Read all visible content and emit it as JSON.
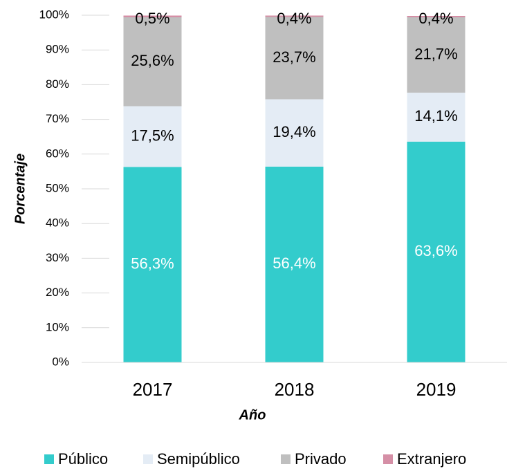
{
  "chart_data": {
    "type": "stacked_bar",
    "x_label": "Año",
    "y_label": "Porcentaje",
    "categories": [
      "2017",
      "2018",
      "2019"
    ],
    "series": [
      {
        "name": "Público",
        "color": "#33cccc",
        "values": [
          56.3,
          56.4,
          63.6
        ],
        "value_labels": [
          "56,3%",
          "56,4%",
          "63,6%"
        ]
      },
      {
        "name": "Semipúblico",
        "color": "#e4ecf5",
        "values": [
          17.5,
          19.4,
          14.1
        ],
        "value_labels": [
          "17,5%",
          "19,4%",
          "14,1%"
        ]
      },
      {
        "name": "Privado",
        "color": "#bfbfbf",
        "values": [
          25.6,
          23.7,
          21.7
        ],
        "value_labels": [
          "25,6%",
          "23,7%",
          "21,7%"
        ]
      },
      {
        "name": "Extranjero",
        "color": "#d58fa6",
        "values": [
          0.5,
          0.4,
          0.4
        ],
        "value_labels": [
          "0,5%",
          "0,4%",
          "0,4%"
        ]
      }
    ],
    "ylim": [
      0,
      100
    ],
    "yticks": [
      {
        "value": 0,
        "label": "0%"
      },
      {
        "value": 10,
        "label": "10%"
      },
      {
        "value": 20,
        "label": "20%"
      },
      {
        "value": 30,
        "label": "30%"
      },
      {
        "value": 40,
        "label": "40%"
      },
      {
        "value": 50,
        "label": "50%"
      },
      {
        "value": 60,
        "label": "60%"
      },
      {
        "value": 70,
        "label": "70%"
      },
      {
        "value": 80,
        "label": "80%"
      },
      {
        "value": 90,
        "label": "90%"
      },
      {
        "value": 100,
        "label": "100%"
      }
    ],
    "legend": "bottom"
  }
}
